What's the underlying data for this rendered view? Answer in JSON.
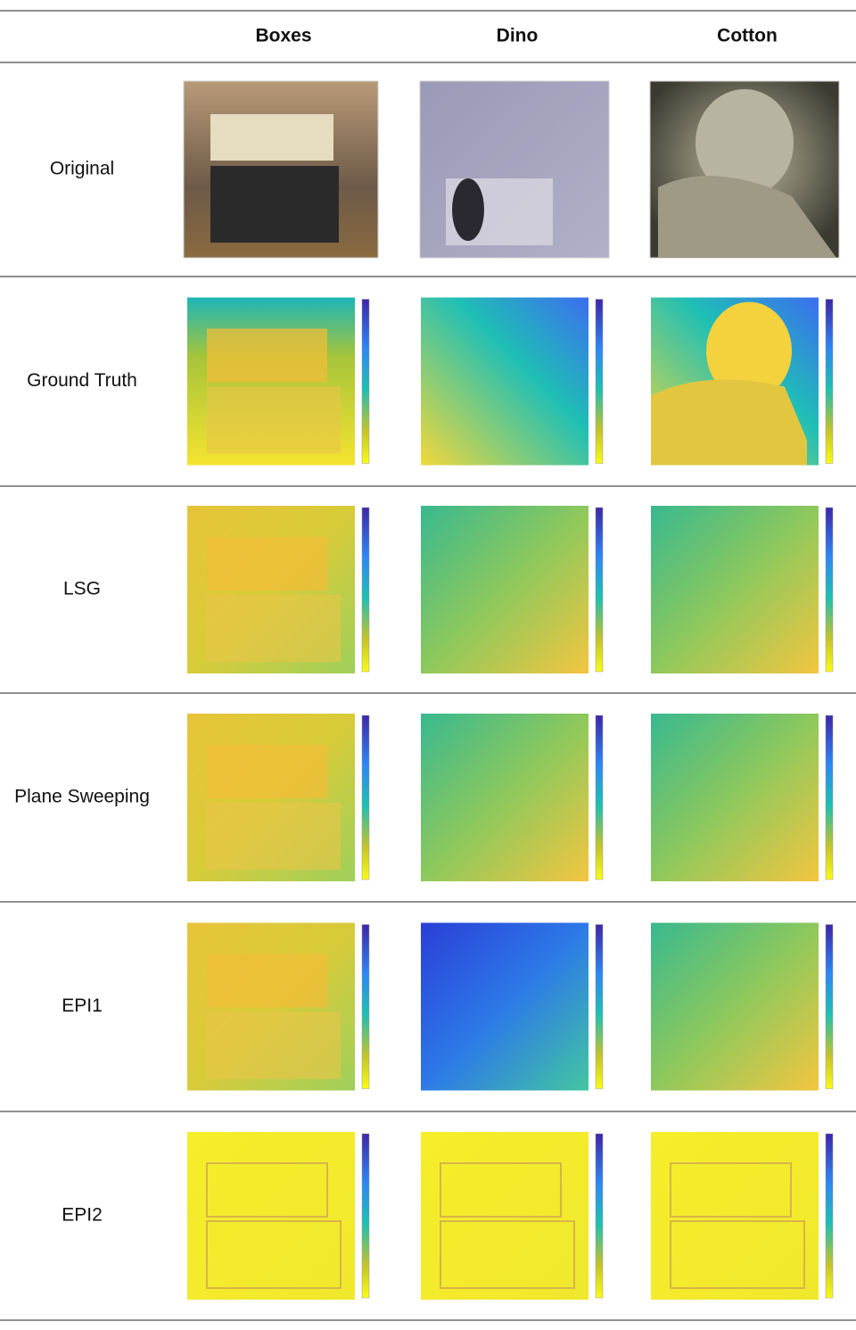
{
  "table": {
    "columns": [
      "Boxes",
      "Dino",
      "Cotton"
    ],
    "rows": [
      "Original",
      "Ground Truth",
      "LSG",
      "Plane Sweeping",
      "EPI1",
      "EPI2"
    ]
  }
}
